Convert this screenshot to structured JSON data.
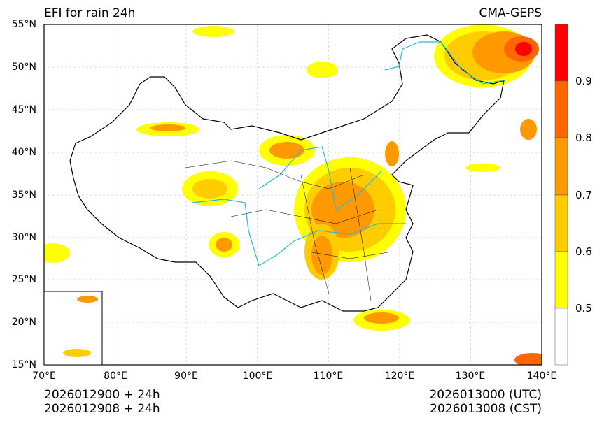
{
  "header": {
    "title": "EFI for rain 24h",
    "source": "CMA-GEPS"
  },
  "axes": {
    "lat_labels": [
      "55°N",
      "50°N",
      "45°N",
      "40°N",
      "35°N",
      "30°N",
      "25°N",
      "20°N",
      "15°N"
    ],
    "lon_labels": [
      "70°E",
      "80°E",
      "90°E",
      "100°E",
      "110°E",
      "120°E",
      "130°E",
      "140°E"
    ]
  },
  "colorbar": {
    "levels": [
      0.5,
      0.6,
      0.7,
      0.8,
      0.9,
      1.0
    ],
    "labels": [
      "0.9",
      "0.8",
      "0.7",
      "0.6",
      "0.5"
    ],
    "colors": [
      "#FFFFFF",
      "#FFFF00",
      "#FFCC00",
      "#FF9900",
      "#FF6600",
      "#FF0000"
    ]
  },
  "footer": {
    "init_utc": "2026012900 + 24h",
    "init_cst": "2026012908 + 24h",
    "valid_utc": "2026013000 (UTC)",
    "valid_cst": "2026013008 (CST)"
  }
}
